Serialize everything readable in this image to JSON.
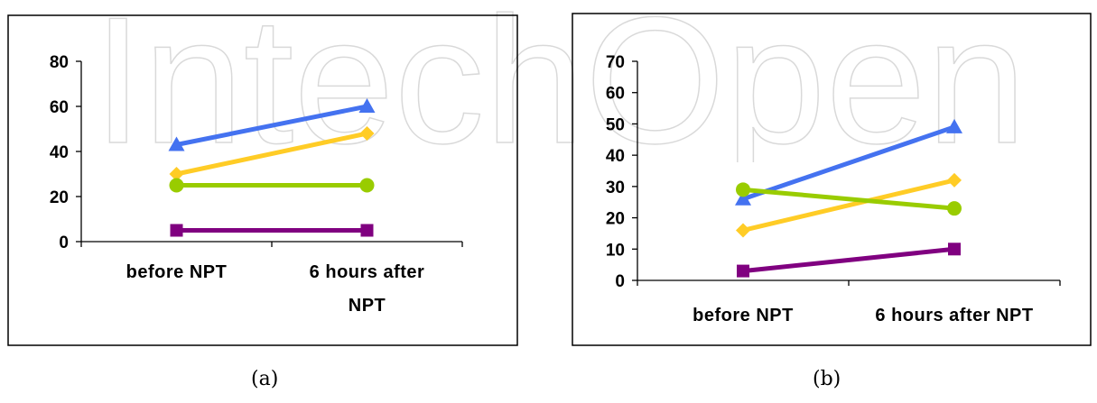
{
  "watermark_text": "IntechOpen",
  "captions": {
    "a": "(a)",
    "b": "(b)"
  },
  "colors": {
    "blue": "#4472f0",
    "yellow": "#ffcc26",
    "green": "#99cc00",
    "purple": "#800080",
    "axis": "#000000"
  },
  "chart_data": [
    {
      "type": "line",
      "categories": [
        "before NPT",
        "6 hours after NPT"
      ],
      "category_lines": [
        [
          "before NPT"
        ],
        [
          "6 hours after",
          "NPT"
        ]
      ],
      "ylim": [
        0,
        80
      ],
      "yticks": [
        0,
        20,
        40,
        60,
        80
      ],
      "grid": false,
      "series": [
        {
          "color": "#4472f0",
          "marker": "triangle",
          "values": [
            43,
            60
          ]
        },
        {
          "color": "#ffcc26",
          "marker": "diamond",
          "values": [
            30,
            48
          ]
        },
        {
          "color": "#99cc00",
          "marker": "circle",
          "values": [
            25,
            25
          ]
        },
        {
          "color": "#800080",
          "marker": "square",
          "values": [
            5,
            5
          ]
        }
      ]
    },
    {
      "type": "line",
      "categories": [
        "before NPT",
        "6 hours after NPT"
      ],
      "category_lines": [
        [
          "before NPT"
        ],
        [
          "6 hours after NPT"
        ]
      ],
      "ylim": [
        0,
        70
      ],
      "yticks": [
        0,
        10,
        20,
        30,
        40,
        50,
        60,
        70
      ],
      "grid": false,
      "series": [
        {
          "color": "#4472f0",
          "marker": "triangle",
          "values": [
            26,
            49
          ]
        },
        {
          "color": "#ffcc26",
          "marker": "diamond",
          "values": [
            16,
            32
          ]
        },
        {
          "color": "#99cc00",
          "marker": "circle",
          "values": [
            29,
            23
          ]
        },
        {
          "color": "#800080",
          "marker": "square",
          "values": [
            3,
            10
          ]
        }
      ]
    }
  ]
}
